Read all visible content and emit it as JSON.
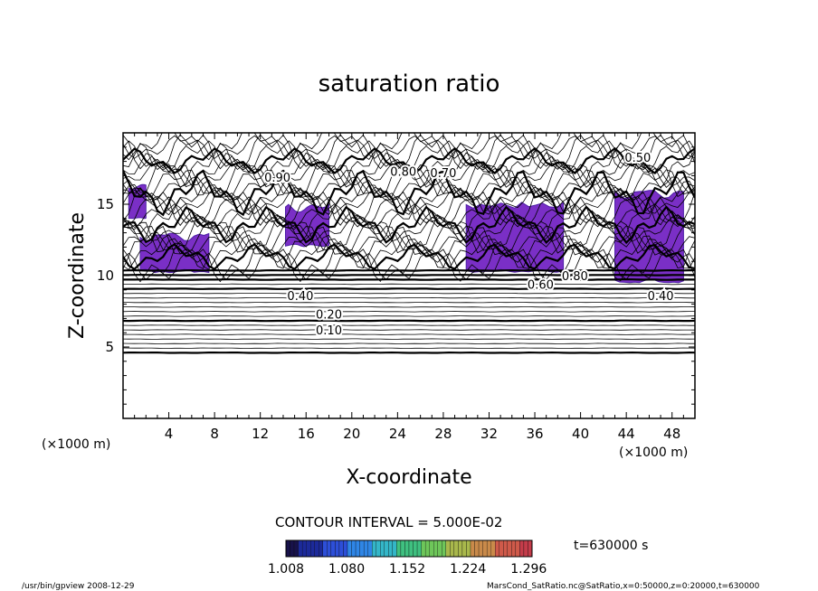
{
  "chart_data": {
    "type": "contour",
    "title": "saturation ratio",
    "xlabel": "X-coordinate",
    "ylabel": "Z-coordinate",
    "x_unit": "(×1000 m)",
    "y_unit": "(×1000 m)",
    "xlim": [
      0,
      50
    ],
    "ylim": [
      0,
      20
    ],
    "x_ticks": [
      4,
      8,
      12,
      16,
      20,
      24,
      28,
      32,
      36,
      40,
      44,
      48
    ],
    "y_ticks": [
      5,
      10,
      15
    ],
    "contour_interval_text": "CONTOUR INTERVAL = 5.000E-02",
    "contour_interval": 0.05,
    "time_text": "t=630000 s",
    "contour_labels": [
      {
        "text": "0.10",
        "x": 18.0,
        "z": 6.2
      },
      {
        "text": "0.20",
        "x": 18.0,
        "z": 7.3
      },
      {
        "text": "0.40",
        "x": 15.5,
        "z": 8.6
      },
      {
        "text": "0.40",
        "x": 47.0,
        "z": 8.6
      },
      {
        "text": "0.50",
        "x": 45.0,
        "z": 18.3
      },
      {
        "text": "0.60",
        "x": 36.5,
        "z": 9.4
      },
      {
        "text": "0.80",
        "x": 39.5,
        "z": 10.0
      },
      {
        "text": "0.80",
        "x": 24.5,
        "z": 17.3
      },
      {
        "text": "0.90",
        "x": 13.5,
        "z": 16.9
      },
      {
        "text": "0.70",
        "x": 28.0,
        "z": 17.2
      }
    ],
    "filled_regions": [
      {
        "x_range": [
          0.5,
          2.0
        ],
        "z_range": [
          14.0,
          16.5
        ]
      },
      {
        "x_range": [
          1.5,
          7.5
        ],
        "z_range": [
          10.2,
          13.0
        ]
      },
      {
        "x_range": [
          14.2,
          18.0
        ],
        "z_range": [
          12.0,
          15.0
        ]
      },
      {
        "x_range": [
          30.0,
          38.5
        ],
        "z_range": [
          10.2,
          15.2
        ]
      },
      {
        "x_range": [
          43.0,
          49.0
        ],
        "z_range": [
          9.5,
          16.0
        ]
      }
    ],
    "colorbar": {
      "min": 1.008,
      "max": 1.3,
      "tick_labels": [
        "1.008",
        "1.080",
        "1.152",
        "1.224",
        "1.296"
      ],
      "colors": [
        "#18124a",
        "#1c2a9a",
        "#2d4fd8",
        "#2f86e6",
        "#34b6c8",
        "#3fc080",
        "#6ec65a",
        "#a9b84c",
        "#c98a4a",
        "#cf5a4a",
        "#c43c4a"
      ]
    }
  },
  "footer": {
    "left": "/usr/bin/gpview   2008-12-29",
    "right": "MarsCond_SatRatio.nc@SatRatio,x=0:50000,z=0:20000,t=630000"
  },
  "colors": {
    "fill": "#7a2fc6",
    "fill_dark": "#4d1fa6",
    "line": "#000000"
  }
}
